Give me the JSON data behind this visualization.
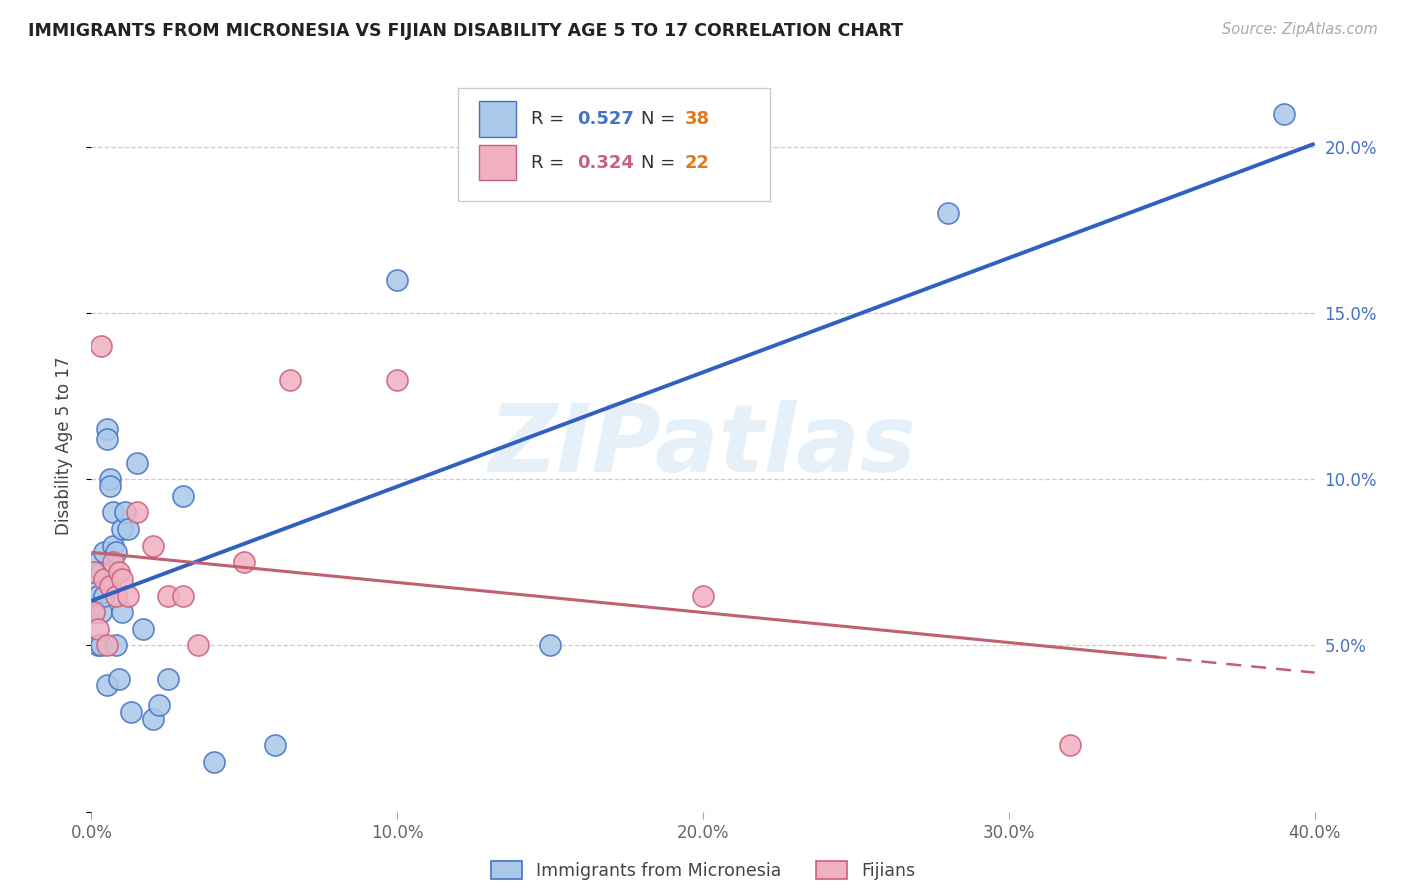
{
  "title": "IMMIGRANTS FROM MICRONESIA VS FIJIAN DISABILITY AGE 5 TO 17 CORRELATION CHART",
  "source": "Source: ZipAtlas.com",
  "ylabel": "Disability Age 5 to 17",
  "xlim": [
    0.0,
    0.4
  ],
  "ylim": [
    0.0,
    0.22
  ],
  "yticks": [
    0.0,
    0.05,
    0.1,
    0.15,
    0.2
  ],
  "yticklabels_right": [
    "",
    "5.0%",
    "10.0%",
    "15.0%",
    "20.0%"
  ],
  "xticks": [
    0.0,
    0.1,
    0.2,
    0.3,
    0.4
  ],
  "xticklabels": [
    "0.0%",
    "10.0%",
    "20.0%",
    "30.0%",
    "40.0%"
  ],
  "watermark": "ZIPatlas",
  "mic_color": "#aac8e8",
  "mic_edge": "#4472c4",
  "fij_color": "#f0b0c0",
  "fij_edge": "#c86080",
  "mic_line_color": "#3060c0",
  "fij_line_color": "#c06070",
  "R_mic": "0.527",
  "N_mic": "38",
  "R_fij": "0.324",
  "N_fij": "22",
  "R_color_mic": "#4472c4",
  "R_color_fij": "#c86080",
  "N_color": "#e07820",
  "mic_x": [
    0.001,
    0.001,
    0.001,
    0.002,
    0.002,
    0.002,
    0.003,
    0.003,
    0.003,
    0.004,
    0.004,
    0.005,
    0.005,
    0.005,
    0.006,
    0.006,
    0.007,
    0.007,
    0.008,
    0.008,
    0.009,
    0.01,
    0.01,
    0.011,
    0.012,
    0.013,
    0.015,
    0.017,
    0.02,
    0.022,
    0.025,
    0.03,
    0.04,
    0.06,
    0.1,
    0.15,
    0.28,
    0.39
  ],
  "mic_y": [
    0.068,
    0.072,
    0.06,
    0.075,
    0.05,
    0.065,
    0.072,
    0.06,
    0.05,
    0.078,
    0.065,
    0.115,
    0.112,
    0.038,
    0.1,
    0.098,
    0.08,
    0.09,
    0.078,
    0.05,
    0.04,
    0.085,
    0.06,
    0.09,
    0.085,
    0.03,
    0.105,
    0.055,
    0.028,
    0.032,
    0.04,
    0.095,
    0.015,
    0.02,
    0.16,
    0.05,
    0.18,
    0.21
  ],
  "fij_x": [
    0.001,
    0.001,
    0.002,
    0.003,
    0.004,
    0.005,
    0.006,
    0.007,
    0.008,
    0.009,
    0.01,
    0.012,
    0.015,
    0.02,
    0.025,
    0.03,
    0.035,
    0.05,
    0.065,
    0.1,
    0.2,
    0.32
  ],
  "fij_y": [
    0.072,
    0.06,
    0.055,
    0.14,
    0.07,
    0.05,
    0.068,
    0.075,
    0.065,
    0.072,
    0.07,
    0.065,
    0.09,
    0.08,
    0.065,
    0.065,
    0.05,
    0.075,
    0.13,
    0.13,
    0.065,
    0.02
  ]
}
